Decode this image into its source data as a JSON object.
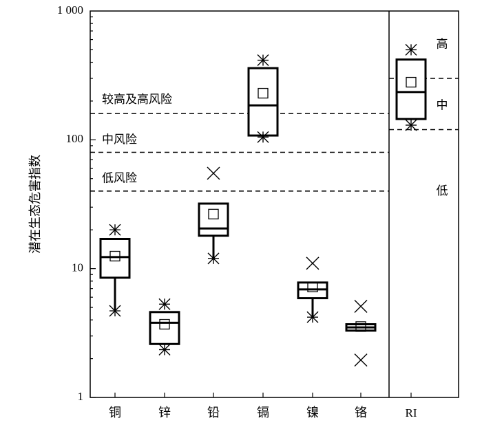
{
  "chart_data": {
    "type": "box",
    "ylabel": "潜在生态危害指数",
    "yscale": "log",
    "ylim": [
      1,
      1000
    ],
    "y_tick_labels": [
      {
        "value": 1,
        "label": "1"
      },
      {
        "value": 10,
        "label": "10"
      },
      {
        "value": 100,
        "label": "100"
      },
      {
        "value": 1000,
        "label": "1 000"
      }
    ],
    "categories": [
      "铜",
      "锌",
      "铅",
      "镉",
      "镍",
      "铬",
      "RI"
    ],
    "boxes": [
      {
        "category": "铜",
        "min": 4.7,
        "q1": 8.5,
        "median": 12.3,
        "q3": 17,
        "max": 17,
        "mean": 12.5,
        "star_markers": [
          4.7,
          20
        ],
        "x_markers": []
      },
      {
        "category": "锌",
        "min": 2.6,
        "q1": 2.6,
        "median": 3.8,
        "q3": 4.6,
        "max": 4.6,
        "mean": 3.7,
        "star_markers": [
          2.35,
          5.3
        ],
        "x_markers": []
      },
      {
        "category": "铅",
        "min": 12,
        "q1": 18,
        "median": 20.5,
        "q3": 32,
        "max": 32,
        "mean": 26.5,
        "star_markers": [
          12
        ],
        "x_markers": [
          55
        ]
      },
      {
        "category": "镉",
        "min": 108,
        "q1": 108,
        "median": 185,
        "q3": 360,
        "max": 360,
        "mean": 230,
        "star_markers": [
          105,
          415
        ],
        "x_markers": []
      },
      {
        "category": "镍",
        "min": 4.3,
        "q1": 5.9,
        "median": 6.9,
        "q3": 7.8,
        "max": 7.8,
        "mean": 7.2,
        "star_markers": [
          4.2
        ],
        "x_markers": [
          11
        ]
      },
      {
        "category": "铬",
        "min": 3.3,
        "q1": 3.3,
        "median": 3.5,
        "q3": 3.7,
        "max": 3.7,
        "mean": 3.55,
        "star_markers": [],
        "x_markers": [
          1.95,
          5.1
        ]
      },
      {
        "category": "RI",
        "min": 145,
        "q1": 145,
        "median": 235,
        "q3": 420,
        "max": 420,
        "mean": 280,
        "star_markers": [
          130,
          500
        ],
        "x_markers": []
      }
    ],
    "element_thresholds": [
      {
        "value": 160,
        "style": "dashed"
      },
      {
        "value": 80,
        "style": "dashed"
      },
      {
        "value": 40,
        "style": "dashed"
      }
    ],
    "element_zone_labels": [
      {
        "text": "较高及高风险",
        "value": 205
      },
      {
        "text": "中风险",
        "value": 100
      },
      {
        "text": "低风险",
        "value": 50
      }
    ],
    "ri_thresholds": [
      {
        "value": 300,
        "style": "dashed"
      },
      {
        "value": 120,
        "style": "dashed"
      }
    ],
    "ri_zone_labels": [
      {
        "text": "高",
        "value": 550
      },
      {
        "text": "中",
        "value": 185
      },
      {
        "text": "低",
        "value": 40
      }
    ],
    "colors": {
      "stroke": "#000000",
      "background": "#ffffff"
    }
  }
}
